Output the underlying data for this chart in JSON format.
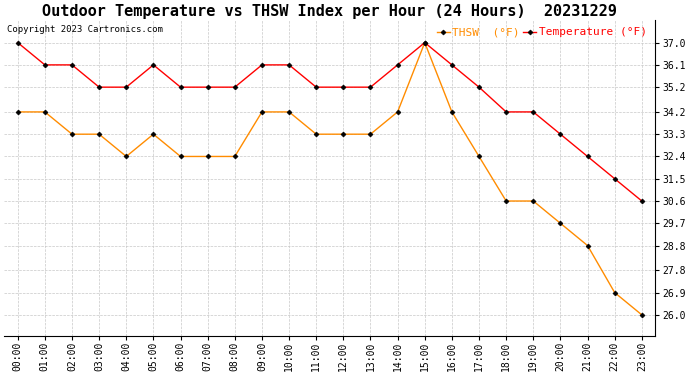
{
  "title": "Outdoor Temperature vs THSW Index per Hour (24 Hours)  20231229",
  "copyright": "Copyright 2023 Cartronics.com",
  "legend_thsw": "THSW  (°F)",
  "legend_temp": "Temperature (°F)",
  "hours": [
    "00:00",
    "01:00",
    "02:00",
    "03:00",
    "04:00",
    "05:00",
    "06:00",
    "07:00",
    "08:00",
    "09:00",
    "10:00",
    "11:00",
    "12:00",
    "13:00",
    "14:00",
    "15:00",
    "16:00",
    "17:00",
    "18:00",
    "19:00",
    "20:00",
    "21:00",
    "22:00",
    "23:00"
  ],
  "temperature": [
    37.0,
    36.1,
    36.1,
    35.2,
    35.2,
    36.1,
    35.2,
    35.2,
    35.2,
    36.1,
    36.1,
    35.2,
    35.2,
    35.2,
    36.1,
    37.0,
    36.1,
    35.2,
    34.2,
    34.2,
    33.3,
    32.4,
    31.5,
    30.6
  ],
  "thsw": [
    34.2,
    34.2,
    33.3,
    33.3,
    32.4,
    33.3,
    32.4,
    32.4,
    32.4,
    34.2,
    34.2,
    33.3,
    33.3,
    33.3,
    34.2,
    37.0,
    34.2,
    32.4,
    30.6,
    30.6,
    29.7,
    28.8,
    26.9,
    26.0
  ],
  "thsw_color": "#ff8c00",
  "temp_color": "#ff0000",
  "marker_color": "#000000",
  "background_color": "#ffffff",
  "grid_color": "#c8c8c8",
  "ylim_min": 25.15,
  "ylim_max": 37.9,
  "yticks": [
    26.0,
    26.9,
    27.8,
    28.8,
    29.7,
    30.6,
    31.5,
    32.4,
    33.3,
    34.2,
    35.2,
    36.1,
    37.0
  ],
  "title_fontsize": 11,
  "copyright_fontsize": 6.5,
  "legend_fontsize": 8,
  "tick_fontsize": 7
}
